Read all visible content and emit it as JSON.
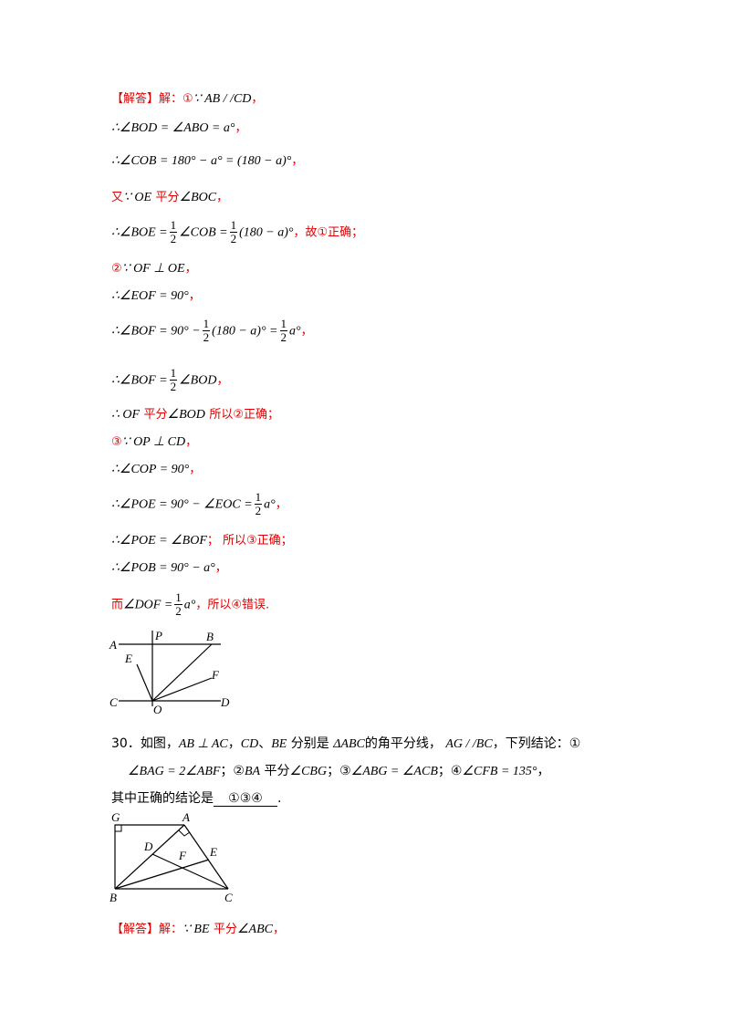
{
  "sol1": {
    "head": "【解答】解：",
    "l1_mark": "①",
    "l1": "∵ AB / /CD",
    "l1_end": "，",
    "l2": "∴∠BOD = ∠ABO = a°",
    "l2_end": "，",
    "l3": "∴∠COB = 180° − a° = (180 − a)°",
    "l3_end": "，",
    "l4_a": "又",
    "l4_b": "∵ OE",
    "l4_c": "平分",
    "l4_d": "∠BOC",
    "l4_end": "，",
    "l5_a": "∴∠BOE =",
    "l5_b": "∠COB =",
    "l5_c": "(180 − a)°",
    "l5_end": "，故①正确；",
    "l6_mark": "②",
    "l6": "∵ OF ⊥ OE",
    "l6_end": "，",
    "l7": "∴∠EOF = 90°",
    "l7_end": "，",
    "l8_a": "∴∠BOF = 90° −",
    "l8_b": "(180 − a)° =",
    "l8_c": "a°",
    "l8_end": "，",
    "l9_a": "∴∠BOF =",
    "l9_b": "∠BOD",
    "l9_end": "，",
    "l10_a": "∴ OF",
    "l10_b": "平分",
    "l10_c": "∠BOD",
    "l10_d": "所以②正确；",
    "l11_mark": "③",
    "l11": "∵ OP ⊥ CD",
    "l11_end": "，",
    "l12": "∴∠COP = 90°",
    "l12_end": "，",
    "l13_a": "∴∠POE = 90° − ∠EOC =",
    "l13_b": "a°",
    "l13_end": "，",
    "l14": "∴∠POE = ∠BOF",
    "l14_end": "；  所以③正确；",
    "l15": "∴∠POB = 90° − a°",
    "l15_end": "，",
    "l16_a": "而",
    "l16_b": "∠DOF =",
    "l16_c": "a°",
    "l16_end": "，所以④错误.",
    "half_n": "1",
    "half_d": "2"
  },
  "fig1": {
    "A": "A",
    "P": "P",
    "B": "B",
    "E": "E",
    "F": "F",
    "C": "C",
    "O": "O",
    "D": "D"
  },
  "q30": {
    "num": "30．如图，",
    "t1": "AB ⊥ AC",
    "t2": "，",
    "t3": "CD",
    "t4": "、",
    "t5": "BE",
    "t6": "分别是",
    "t7": "ΔABC",
    "t8": "的角平分线，",
    "t9": "AG / /BC",
    "t10": "，下列结论：①",
    "c1": "∠BAG = 2∠ABF",
    "c2a": "；②",
    "c2b": "BA",
    "c2c": "平分",
    "c2d": "∠CBG",
    "c3a": "；③",
    "c3b": "∠ABG = ∠ACB",
    "c4a": "；④",
    "c4b": "∠CFB = 135°",
    "c4c": "，",
    "ask": "其中正确的结论是",
    "answer": "①③④",
    "ask_end": "."
  },
  "fig2": {
    "G": "G",
    "A": "A",
    "D": "D",
    "F": "F",
    "E": "E",
    "B": "B",
    "C": "C"
  },
  "sol2": {
    "head": "【解答】解：",
    "a": "∵ BE",
    "b": "平分",
    "c": "∠ABC",
    "end": "，"
  }
}
